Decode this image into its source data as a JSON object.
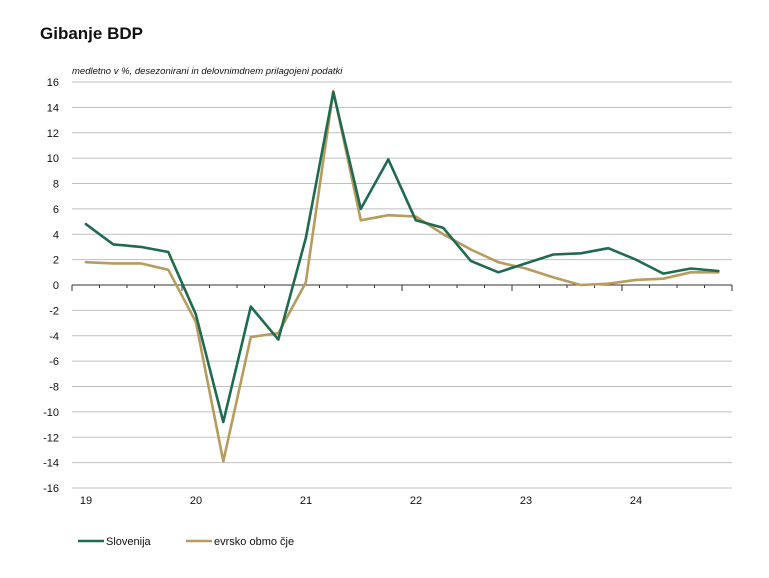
{
  "chart_data": {
    "type": "line",
    "title": "Gibanje BDP",
    "subtitle": "medletno v %, desezonirani in delovnimdnem prilagojeni podatki",
    "ylim": [
      -16,
      16
    ],
    "y_ticks": [
      16,
      14,
      12,
      10,
      8,
      6,
      4,
      2,
      0,
      -2,
      -4,
      -6,
      -8,
      -10,
      -12,
      -14,
      -16
    ],
    "x_tick_labels": [
      "19",
      "20",
      "21",
      "22",
      "23",
      "24"
    ],
    "quarters_per_year": 4,
    "grid": true,
    "legend_position": "bottom-left",
    "series": [
      {
        "name": "Slovenija",
        "color": "#1f6b4f",
        "values": [
          4.8,
          3.2,
          3.0,
          2.6,
          -2.3,
          -10.8,
          -1.7,
          -4.3,
          3.7,
          15.2,
          6.0,
          9.9,
          5.1,
          4.5,
          1.9,
          1.0,
          1.7,
          2.4,
          2.5,
          2.9,
          2.0,
          0.9,
          1.3,
          1.1
        ]
      },
      {
        "name": "evrsko obmo čje",
        "color": "#b89b5e",
        "values": [
          1.8,
          1.7,
          1.7,
          1.2,
          -2.9,
          -13.9,
          -4.1,
          -3.8,
          0.2,
          15.3,
          5.1,
          5.5,
          5.4,
          4.0,
          2.8,
          1.8,
          1.3,
          0.6,
          0.0,
          0.1,
          0.4,
          0.5,
          1.0,
          1.0
        ]
      }
    ]
  }
}
